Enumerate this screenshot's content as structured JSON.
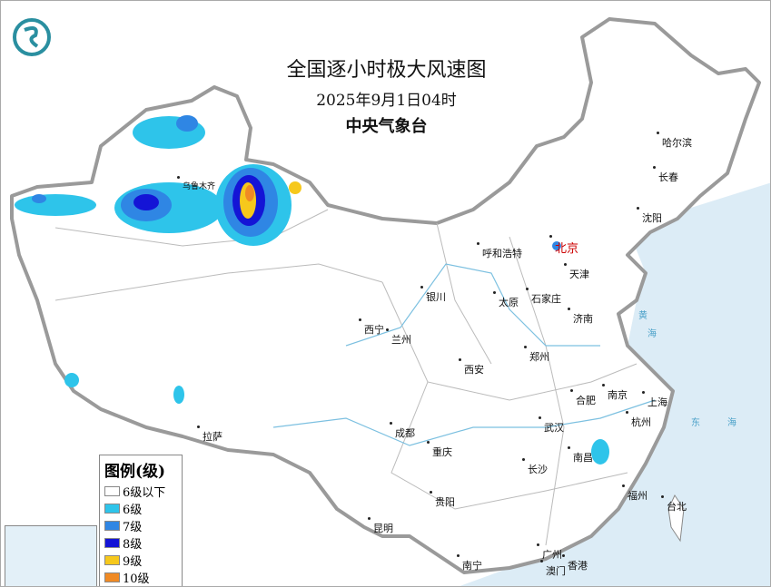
{
  "header": {
    "title": "全国逐小时极大风速图",
    "datetime": "2025年9月1日04时",
    "issuer": "中央气象台"
  },
  "legend": {
    "title": "图例(级)",
    "items": [
      {
        "label": "6级以下",
        "color": "#ffffff"
      },
      {
        "label": "6级",
        "color": "#2ec4ea"
      },
      {
        "label": "7级",
        "color": "#2f86e4"
      },
      {
        "label": "8级",
        "color": "#1414d6"
      },
      {
        "label": "9级",
        "color": "#f6c81c"
      },
      {
        "label": "10级",
        "color": "#f08a24"
      }
    ]
  },
  "capital": "北京",
  "cities": [
    "哈尔滨",
    "长春",
    "沈阳",
    "天津",
    "呼和浩特",
    "太原",
    "石家庄",
    "济南",
    "银川",
    "西宁",
    "兰州",
    "西安",
    "郑州",
    "南京",
    "合肥",
    "上海",
    "杭州",
    "武汉",
    "南昌",
    "长沙",
    "成都",
    "重庆",
    "贵阳",
    "昆明",
    "南宁",
    "广州",
    "澳门",
    "香港",
    "福州",
    "台北",
    "拉萨",
    "乌鲁木齐"
  ],
  "seas": [
    "黄",
    "海",
    "东",
    "海"
  ],
  "colors": {
    "sea": "#dcecf6",
    "border": "#9a9a9a",
    "river": "#7cc0e0",
    "logo": "#2a8fa0"
  }
}
